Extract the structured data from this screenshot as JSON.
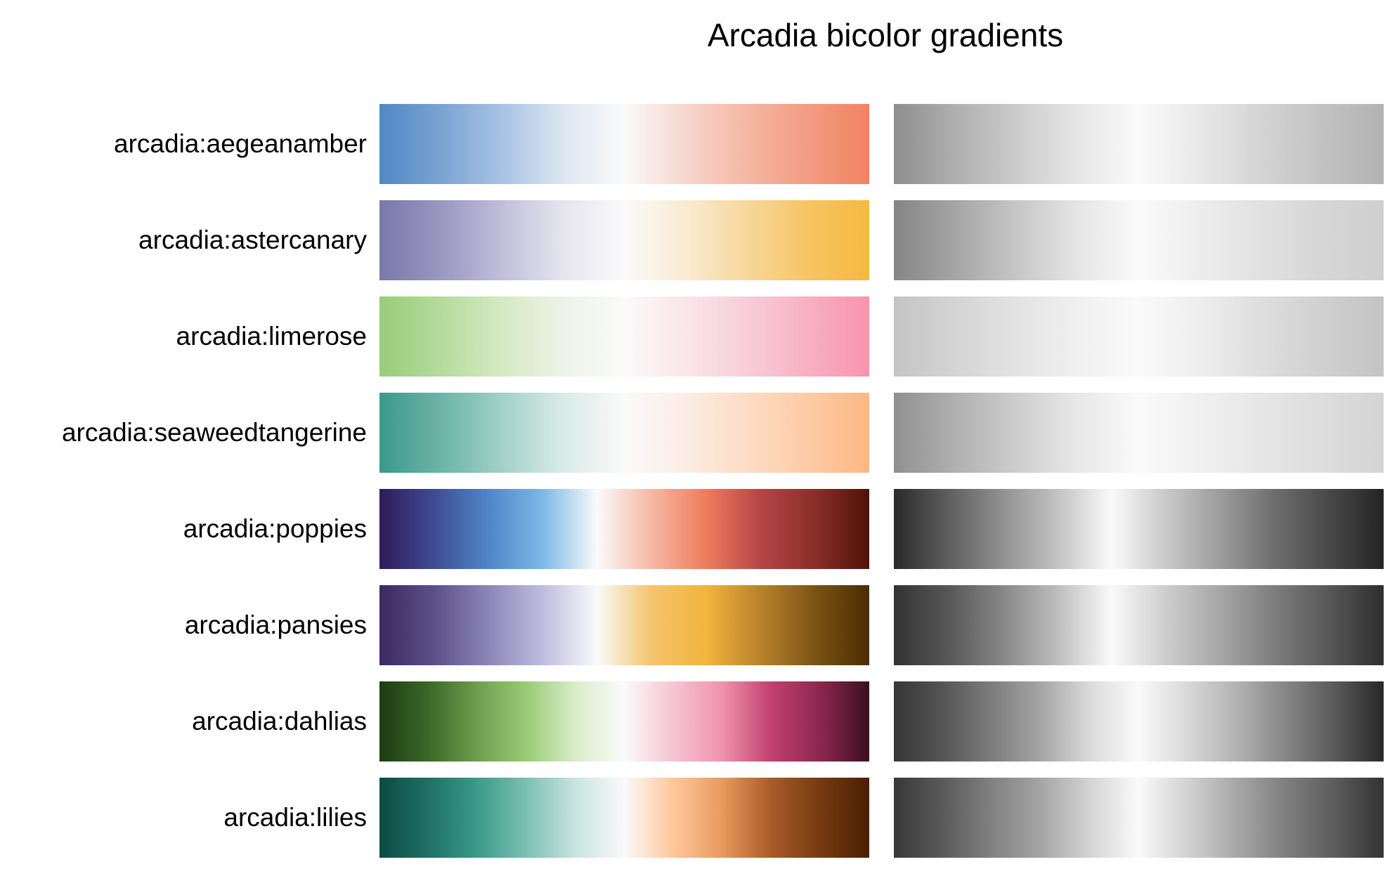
{
  "chart_data": {
    "type": "heatmap",
    "title": "Arcadia bicolor gradients",
    "xlabel": "",
    "ylabel": "",
    "grid": false,
    "legend": "none",
    "panels": [
      "color",
      "grayscale"
    ],
    "gradients": [
      {
        "name": "arcadia:aegeanamber",
        "colors": [
          "#5088C5",
          "#7AA3D3",
          "#A8C2E4",
          "#DCE6F1",
          "#FAFAFA",
          "#F6D6CE",
          "#F5B7A3",
          "#F39C82",
          "#F28360"
        ],
        "grays": [
          "#8E8E8E",
          "#AFAFAF",
          "#CBCBCB",
          "#E6E6E6",
          "#FAFAFA",
          "#E8E8E8",
          "#D4D4D4",
          "#C2C2C2",
          "#B2B2B2"
        ]
      },
      {
        "name": "arcadia:astercanary",
        "colors": [
          "#7A77AB",
          "#9A97C2",
          "#C0BEDA",
          "#E6E5EF",
          "#FAFAFA",
          "#F9EBD2",
          "#F8D79C",
          "#F7C463",
          "#F5B941"
        ],
        "grays": [
          "#858585",
          "#A5A5A5",
          "#C6C6C6",
          "#E5E5E5",
          "#FAFAFA",
          "#EDEDED",
          "#E1E1E1",
          "#D6D6D6",
          "#CFCFCF"
        ]
      },
      {
        "name": "arcadia:limerose",
        "colors": [
          "#97CD78",
          "#B5DB9B",
          "#D5EAC2",
          "#EEF3E8",
          "#FAFAFA",
          "#F9E6EB",
          "#F8CDD8",
          "#F7B0C2",
          "#F794AD"
        ],
        "grays": [
          "#C4C4C4",
          "#D4D4D4",
          "#E3E3E3",
          "#F0F0F0",
          "#FAFAFA",
          "#EEEEEE",
          "#DEDEDE",
          "#D0D0D0",
          "#C3C3C3"
        ]
      },
      {
        "name": "arcadia:seaweedtangerine",
        "colors": [
          "#3B998A",
          "#6CB4A7",
          "#A2D0C8",
          "#DAEBE7",
          "#FAFAFA",
          "#FCEDE3",
          "#FDDCC4",
          "#FECBA6",
          "#FEB784"
        ],
        "grays": [
          "#909090",
          "#B0B0B0",
          "#CDCDCD",
          "#E8E8E8",
          "#FAFAFA",
          "#F0F0F0",
          "#E6E6E6",
          "#DDDDDD",
          "#D4D4D4"
        ]
      },
      {
        "name": "arcadia:poppies",
        "colors": [
          "#2F1B5B",
          "#3E4C91",
          "#4F85C8",
          "#7DB9E6",
          "#FAFAFA",
          "#F5B9A3",
          "#EE7C5D",
          "#B54546",
          "#8A2E28",
          "#4F1307"
        ],
        "grays": [
          "#2A2A2A",
          "#5E5E5E",
          "#919191",
          "#C2C2C2",
          "#FAFAFA",
          "#C9C9C9",
          "#9C9C9C",
          "#6E6E6E",
          "#484848",
          "#242424"
        ]
      },
      {
        "name": "arcadia:pansies",
        "colors": [
          "#3D2860",
          "#5C5088",
          "#8C86B8",
          "#BEBDE0",
          "#FAFAFA",
          "#F4C46C",
          "#F2B43D",
          "#B8822C",
          "#7A5414",
          "#4A2D00"
        ],
        "grays": [
          "#333333",
          "#575757",
          "#878787",
          "#BDBDBD",
          "#FAFAFA",
          "#CDCDCD",
          "#A6A6A6",
          "#7D7D7D",
          "#575757",
          "#2E2E2E"
        ]
      },
      {
        "name": "arcadia:dahlias",
        "colors": [
          "#1D3B13",
          "#3A6826",
          "#6E9E4E",
          "#99CC75",
          "#D8EDCA",
          "#FAFAFA",
          "#F6C4D3",
          "#F092AE",
          "#C1406E",
          "#8C274F",
          "#3B0F1F"
        ],
        "grays": [
          "#363636",
          "#555555",
          "#7D7D7D",
          "#A5A5A5",
          "#DADADA",
          "#FAFAFA",
          "#D8D8D8",
          "#B2B2B2",
          "#868686",
          "#5A5A5A",
          "#272727"
        ]
      },
      {
        "name": "arcadia:lilies",
        "colors": [
          "#0B4B43",
          "#1F7165",
          "#3B9A88",
          "#7CC0B4",
          "#C8E4DF",
          "#FAFAFA",
          "#FFC79A",
          "#E79A5E",
          "#A85B26",
          "#753A12",
          "#4A2000"
        ],
        "grays": [
          "#383838",
          "#5A5A5A",
          "#818181",
          "#A5A5A5",
          "#D4D4D4",
          "#FAFAFA",
          "#D2D2D2",
          "#A7A7A7",
          "#7F7F7F",
          "#5C5C5C",
          "#333333"
        ]
      }
    ]
  }
}
